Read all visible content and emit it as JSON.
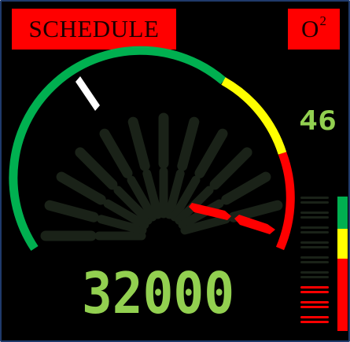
{
  "header": {
    "schedule_label": "SCHEDULE",
    "o2_base": "O",
    "o2_sup": "2"
  },
  "gauge": {
    "readout": "32000",
    "small_readout": "46",
    "level": 0.66,
    "marker_level": 0.14,
    "arc_colors": {
      "green": "#00b050",
      "yellow": "#ffff00",
      "red": "#ff0000",
      "marker": "#ffffff"
    },
    "digit_color": "#92d050",
    "dim_segment_color": "#1a2218"
  },
  "level_bar": {
    "segments_total": 9,
    "segments_lit": 3,
    "colors": [
      "#00b050",
      "#ffff00",
      "#ff0000"
    ]
  }
}
